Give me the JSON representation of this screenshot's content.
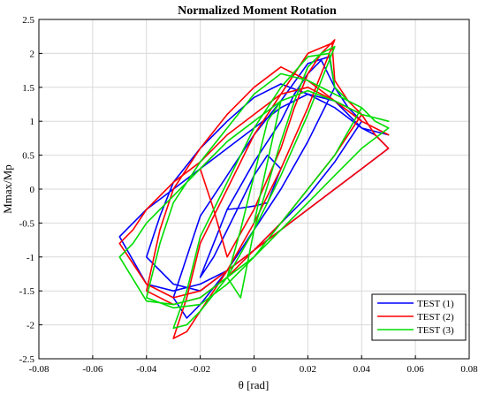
{
  "chart_data": {
    "type": "line",
    "title": "Normalized Moment Rotation",
    "xlabel": "θ [rad]",
    "ylabel": "Mmax/Mp",
    "xlim": [
      -0.08,
      0.08
    ],
    "ylim": [
      -2.5,
      2.5
    ],
    "grid": true,
    "legend_position": "bottom-right",
    "x_ticks": [
      -0.08,
      -0.06,
      -0.04,
      -0.02,
      0,
      0.02,
      0.04,
      0.06,
      0.08
    ],
    "x_tick_labels": [
      "-0.08",
      "-0.06",
      "-0.04",
      "-0.02",
      "0",
      "0.02",
      "0.04",
      "0.06",
      "0.08"
    ],
    "y_ticks": [
      2.5,
      2,
      1.5,
      1,
      0.5,
      0,
      -0.5,
      -1,
      -1.5,
      -2,
      -2.5
    ],
    "y_tick_labels": [
      "2.5",
      "2",
      "1.5",
      "1",
      "0.5",
      "0",
      "-0.5",
      "-1",
      "-1.5",
      "-2",
      "-2.5"
    ],
    "series": [
      {
        "name": "TEST (1)",
        "color": "#0000ff",
        "x": [
          -0.01,
          -0.005,
          0,
          0.005,
          0.01,
          0.005,
          0,
          -0.005,
          -0.01,
          -0.015,
          -0.02,
          -0.015,
          -0.01,
          0,
          0.01,
          0.015,
          0.02,
          0.025,
          0.03,
          0.02,
          0.01,
          0,
          -0.01,
          -0.02,
          -0.025,
          -0.03,
          -0.025,
          -0.02,
          -0.01,
          0,
          0.01,
          0.02,
          0.028,
          0.03,
          0.035,
          0.04,
          0.03,
          0.02,
          0.01,
          0,
          -0.01,
          -0.02,
          -0.03,
          -0.04,
          -0.035,
          -0.03,
          -0.02,
          -0.01,
          0,
          0.01,
          0.02,
          0.03,
          0.04,
          0.045,
          0.05,
          0.04,
          0.03,
          0.02,
          0.01,
          0,
          -0.01,
          -0.02,
          -0.03,
          -0.04,
          -0.05,
          -0.045,
          -0.04,
          -0.03,
          -0.02,
          -0.01,
          0,
          0.01,
          0.02,
          0.03,
          0.04,
          0.05
        ],
        "y": [
          -0.3,
          -0.28,
          -0.25,
          -0.2,
          0.3,
          0.5,
          0.2,
          -0.2,
          -0.6,
          -1.0,
          -1.3,
          -0.8,
          -0.3,
          0.4,
          1.0,
          1.4,
          1.7,
          1.9,
          1.5,
          0.7,
          0,
          -0.6,
          -1.2,
          -1.7,
          -1.9,
          -1.6,
          -1.0,
          -0.4,
          0.2,
          0.8,
          1.3,
          1.85,
          1.95,
          1.5,
          1.2,
          1.0,
          0.4,
          -0.1,
          -0.5,
          -0.9,
          -1.2,
          -1.5,
          -1.4,
          -1.0,
          -0.4,
          0.1,
          0.6,
          1.0,
          1.35,
          1.55,
          1.4,
          1.2,
          0.9,
          0.8,
          0.6,
          0.3,
          0,
          -0.3,
          -0.6,
          -0.9,
          -1.2,
          -1.4,
          -1.5,
          -1.4,
          -0.7,
          -0.5,
          -0.3,
          0,
          0.3,
          0.6,
          0.9,
          1.2,
          1.4,
          1.3,
          0.9,
          0.8
        ]
      },
      {
        "name": "TEST (2)",
        "color": "#ff0000",
        "x": [
          -0.015,
          -0.02,
          -0.015,
          -0.01,
          0,
          0.01,
          0.015,
          0.02,
          0.025,
          0.03,
          0.02,
          0.01,
          0,
          -0.01,
          -0.02,
          -0.025,
          -0.03,
          -0.025,
          -0.02,
          -0.01,
          0,
          0.01,
          0.02,
          0.029,
          0.03,
          0.035,
          0.04,
          0.03,
          0.02,
          0.01,
          0,
          -0.01,
          -0.02,
          -0.03,
          -0.04,
          -0.035,
          -0.03,
          -0.02,
          -0.01,
          0,
          0.01,
          0.02,
          0.03,
          0.04,
          0.045,
          0.05,
          0.04,
          0.03,
          0.02,
          0.01,
          0,
          -0.01,
          -0.02,
          -0.03,
          -0.04,
          -0.05,
          -0.045,
          -0.04,
          -0.03,
          -0.02,
          -0.01,
          0,
          0.01,
          0.02,
          0.03,
          0.04,
          0.05
        ],
        "y": [
          0.5,
          0.3,
          -0.3,
          -1.0,
          -0.3,
          0.6,
          1.2,
          1.7,
          2.0,
          2.2,
          1.2,
          0.3,
          -0.5,
          -1.2,
          -1.8,
          -2.1,
          -2.2,
          -1.6,
          -0.8,
          0,
          0.8,
          1.4,
          2.0,
          2.15,
          1.6,
          1.3,
          1.1,
          0.5,
          0,
          -0.5,
          -0.9,
          -1.3,
          -1.6,
          -1.7,
          -1.5,
          -0.6,
          0,
          0.6,
          1.1,
          1.5,
          1.8,
          1.6,
          1.3,
          1.1,
          0.8,
          0.6,
          0.3,
          0,
          -0.3,
          -0.6,
          -0.9,
          -1.2,
          -1.5,
          -1.6,
          -1.4,
          -0.8,
          -0.6,
          -0.3,
          0.1,
          0.4,
          0.8,
          1.1,
          1.4,
          1.5,
          1.3,
          1.0,
          0.8
        ]
      },
      {
        "name": "TEST (3)",
        "color": "#00dd00",
        "x": [
          0,
          0.005,
          0.01,
          0.005,
          0,
          -0.005,
          -0.01,
          -0.005,
          0,
          0.01,
          0.015,
          0.02,
          0.025,
          0.03,
          0.02,
          0.01,
          0,
          -0.01,
          -0.02,
          -0.025,
          -0.03,
          -0.025,
          -0.02,
          -0.01,
          0,
          0.01,
          0.02,
          0.028,
          0.03,
          0.035,
          0.04,
          0.03,
          0.02,
          0.01,
          0,
          -0.01,
          -0.02,
          -0.03,
          -0.04,
          -0.035,
          -0.03,
          -0.02,
          -0.01,
          0,
          0.01,
          0.02,
          0.03,
          0.04,
          0.045,
          0.05,
          0.04,
          0.03,
          0.02,
          0.01,
          0,
          -0.01,
          -0.02,
          -0.03,
          -0.04,
          -0.05,
          -0.045,
          -0.04,
          -0.03,
          -0.02,
          -0.01,
          0,
          0.01,
          0.02,
          0.03,
          0.04,
          0.05
        ],
        "y": [
          -0.5,
          0.4,
          1.3,
          1.0,
          0.2,
          -0.6,
          -1.3,
          -1.6,
          -0.6,
          0.7,
          1.3,
          1.8,
          2.0,
          2.1,
          1.1,
          0.2,
          -0.6,
          -1.3,
          -1.8,
          -2.0,
          -2.05,
          -1.5,
          -0.7,
          0.1,
          0.9,
          1.5,
          1.95,
          2.0,
          1.5,
          1.3,
          1.2,
          0.5,
          0,
          -0.5,
          -1.0,
          -1.4,
          -1.7,
          -1.75,
          -1.6,
          -0.8,
          -0.2,
          0.4,
          0.9,
          1.4,
          1.7,
          1.6,
          1.4,
          1.2,
          1.0,
          0.9,
          0.6,
          0.2,
          -0.2,
          -0.6,
          -1.0,
          -1.3,
          -1.6,
          -1.7,
          -1.65,
          -1.0,
          -0.8,
          -0.5,
          -0.1,
          0.3,
          0.7,
          1.0,
          1.3,
          1.45,
          1.3,
          1.1,
          1.0
        ]
      }
    ]
  }
}
